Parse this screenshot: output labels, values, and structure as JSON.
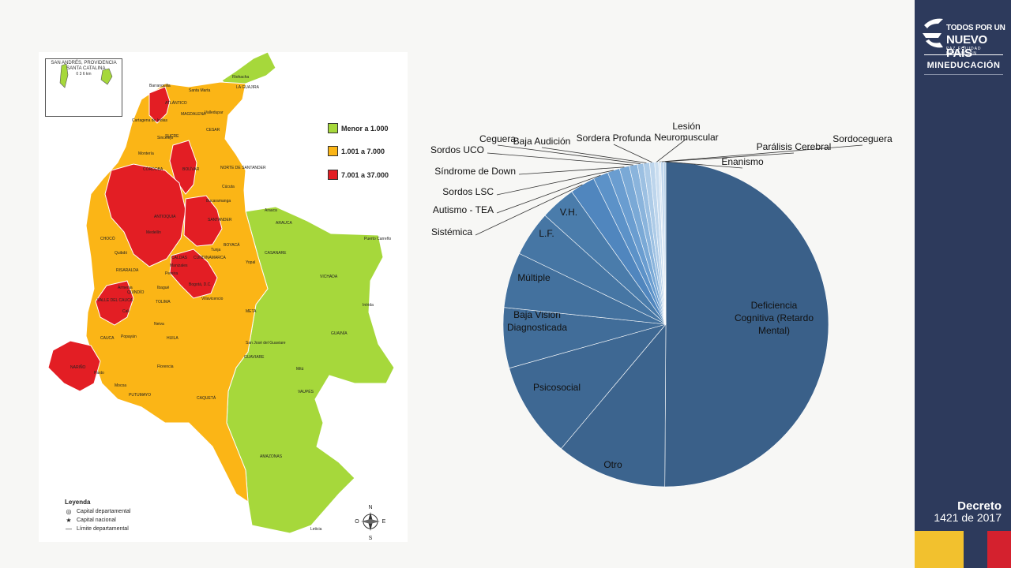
{
  "map": {
    "inset_title": "SAN ANDRÉS, PROVIDENCIA Y SANTA CATALINA",
    "inset_island": "San Andrés",
    "inset_scale": "0   3   6 km",
    "legend": [
      {
        "label": "Menor a 1.000",
        "color": "#a6d83b"
      },
      {
        "label": "1.001 a 7.000",
        "color": "#fbb516"
      },
      {
        "label": "7.001 a 37.000",
        "color": "#e31e24"
      }
    ],
    "leyenda_title": "Leyenda",
    "leyenda_items": [
      {
        "symbol": "◎",
        "label": "Capital departamental"
      },
      {
        "symbol": "★",
        "label": "Capital nacional"
      },
      {
        "symbol": "—",
        "label": "Límite departamental"
      }
    ],
    "compass": {
      "n": "N",
      "s": "S",
      "e": "E",
      "w": "O"
    },
    "labels": [
      "Riohacha",
      "LA GUAJIRA",
      "Barranquilla",
      "ATLÁNTICO",
      "Santa Marta",
      "MAGDALENA",
      "Valledupar",
      "CESAR",
      "Cartagena de Indias",
      "Sincelejo",
      "SUCRE",
      "Montería",
      "CÓRDOBA",
      "BOLÍVAR",
      "NORTE DE SANTANDER",
      "Cúcuta",
      "ANTIOQUIA",
      "Bucaramanga",
      "SANTANDER",
      "Arauca",
      "ARAUCA",
      "Puerto Carreño",
      "Medellín",
      "CHOCÓ",
      "Quibdó",
      "BOYACÁ",
      "Tunja",
      "CASANARE",
      "Yopal",
      "VICHADA",
      "CALDAS",
      "Manizales",
      "RISARALDA",
      "Pereira",
      "CUNDINAMARCA",
      "Bogotá, D.C.",
      "Armenia",
      "QUINDÍO",
      "Ibagué",
      "TOLIMA",
      "Villavicencio",
      "META",
      "Inírida",
      "GUAINÍA",
      "VALLE DEL CAUCA",
      "Cali",
      "Neiva",
      "HUILA",
      "Popayán",
      "CAUCA",
      "San José del Guaviare",
      "GUAVIARE",
      "Mitú",
      "VAUPÉS",
      "NARIÑO",
      "Pasto",
      "Florencia",
      "Mocoa",
      "PUTUMAYO",
      "CAQUETÁ",
      "AMAZONAS",
      "Leticia"
    ]
  },
  "chart_data": {
    "type": "pie",
    "slices": [
      {
        "label": "Deficiencia Cognitiva (Retardo Mental)",
        "value": 50.0,
        "color": "#3a6089"
      },
      {
        "label": "Otro",
        "value": 11.0,
        "color": "#3c648e"
      },
      {
        "label": "Psicosocial",
        "value": 9.5,
        "color": "#3e6893"
      },
      {
        "label": "Baja Visión Diagnosticada",
        "value": 6.0,
        "color": "#416d99"
      },
      {
        "label": "Múltiple",
        "value": 5.5,
        "color": "#43719e"
      },
      {
        "label": "L.F.",
        "value": 4.5,
        "color": "#4676a4"
      },
      {
        "label": "V.H.",
        "value": 3.5,
        "color": "#4a7cab"
      },
      {
        "label": "Sistémica",
        "value": 2.5,
        "color": "#5086be"
      },
      {
        "label": "Autismo - TEA",
        "value": 1.5,
        "color": "#5c92c8"
      },
      {
        "label": "Sordos LSC",
        "value": 1.2,
        "color": "#6a9dd0"
      },
      {
        "label": "Síndrome de Down",
        "value": 1.0,
        "color": "#7aa9d6"
      },
      {
        "label": "Sordos UCO",
        "value": 0.8,
        "color": "#8ab4dc"
      },
      {
        "label": "Ceguera",
        "value": 0.6,
        "color": "#9cc0e2"
      },
      {
        "label": "Baja Audición",
        "value": 0.6,
        "color": "#adcbe7"
      },
      {
        "label": "Sordera Profunda",
        "value": 0.5,
        "color": "#bdd5ec"
      },
      {
        "label": "Lesión Neuromuscular",
        "value": 0.4,
        "color": "#cbdef0"
      },
      {
        "label": "Sordoceguera",
        "value": 0.2,
        "color": "#d8e6f4"
      },
      {
        "label": "Parálisis Cerebral",
        "value": 0.3,
        "color": "#c2d8ee"
      },
      {
        "label": "Enanismo",
        "value": 0.2,
        "color": "#b0cde8"
      }
    ]
  },
  "brand": {
    "line1": "TODOS POR UN",
    "line2": "NUEVO PAÍS",
    "line3": "PAZ  EQUIDAD  EDUCACIÓN",
    "ministry": "MINEDUCACIÓN",
    "decree_title": "Decreto",
    "decree_number": "1421 de 2017",
    "sidebar_color": "#2d3a5c"
  }
}
